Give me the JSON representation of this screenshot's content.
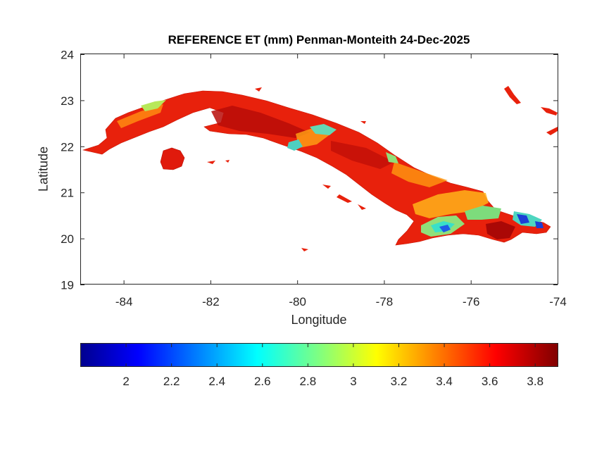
{
  "title": "REFERENCE ET (mm) Penman-Monteith 24-Dec-2025",
  "xlabel": "Longitude",
  "ylabel": "Latitude",
  "x_ticks": [
    "-84",
    "-82",
    "-80",
    "-78",
    "-76",
    "-74"
  ],
  "y_ticks": [
    "24",
    "23",
    "22",
    "21",
    "20",
    "19"
  ],
  "colorbar_ticks": [
    "2",
    "2.2",
    "2.4",
    "2.6",
    "2.8",
    "3",
    "3.2",
    "3.4",
    "3.6",
    "3.8"
  ],
  "map_data": {
    "type": "raster-map",
    "variable": "Reference ET",
    "units": "mm",
    "method": "Penman-Monteith",
    "date": "24-Dec-2025",
    "xlim": [
      -85,
      -74
    ],
    "ylim": [
      19,
      24
    ],
    "color_range": [
      1.8,
      3.9
    ],
    "colormap": "jet",
    "colorbar_position": "bottom",
    "land_color_dominant": "#e8210c"
  }
}
